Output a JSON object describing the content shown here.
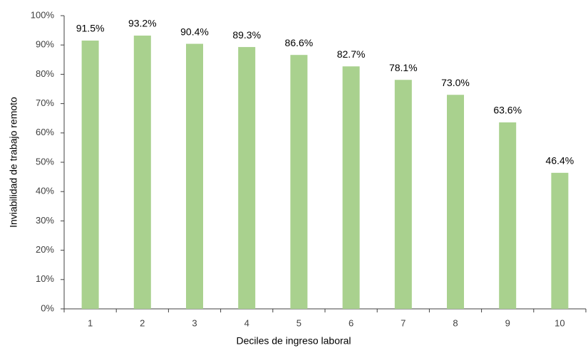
{
  "chart_data": {
    "type": "bar",
    "x_label": "Deciles de ingreso laboral",
    "y_label": "Inviabilidad de trabajo remoto",
    "categories": [
      "1",
      "2",
      "3",
      "4",
      "5",
      "6",
      "7",
      "8",
      "9",
      "10"
    ],
    "values": [
      91.5,
      93.2,
      90.4,
      89.3,
      86.6,
      82.7,
      78.1,
      73.0,
      63.6,
      46.4
    ],
    "value_labels": [
      "91.5%",
      "93.2%",
      "90.4%",
      "89.3%",
      "86.6%",
      "82.7%",
      "78.1%",
      "73.0%",
      "63.6%",
      "46.4%"
    ],
    "color": "#a9d18e",
    "ylim": [
      0,
      100
    ],
    "yticks": [
      {
        "value": 0,
        "label": "0%"
      },
      {
        "value": 10,
        "label": "10%"
      },
      {
        "value": 20,
        "label": "20%"
      },
      {
        "value": 30,
        "label": "30%"
      },
      {
        "value": 40,
        "label": "40%"
      },
      {
        "value": 50,
        "label": "50%"
      },
      {
        "value": 60,
        "label": "60%"
      },
      {
        "value": 70,
        "label": "70%"
      },
      {
        "value": 80,
        "label": "80%"
      },
      {
        "value": 90,
        "label": "90%"
      },
      {
        "value": 100,
        "label": "100%"
      }
    ],
    "grid": false
  }
}
